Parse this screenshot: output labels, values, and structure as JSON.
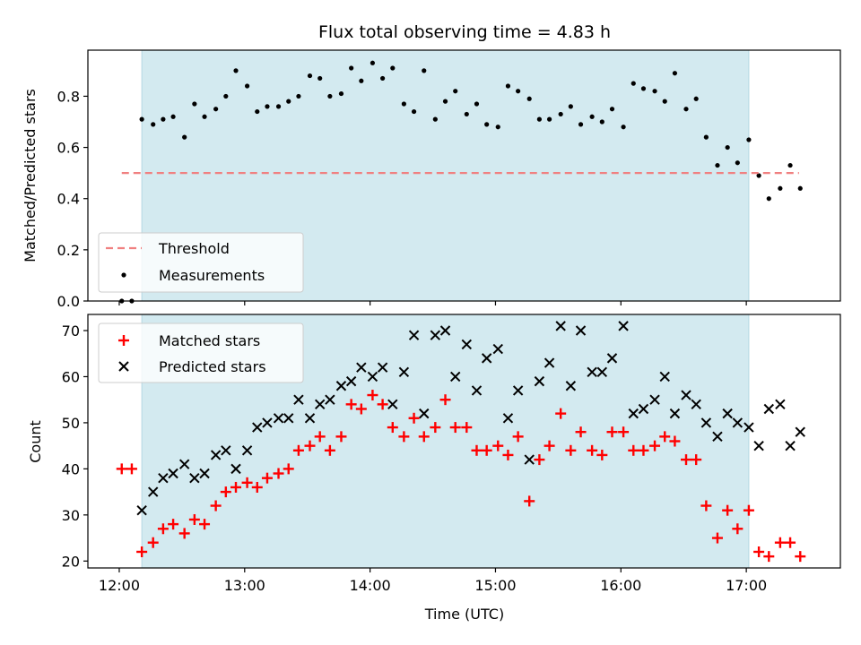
{
  "figure": {
    "title": "Flux total observing time = 4.83 h"
  },
  "chart_data": [
    {
      "type": "scatter",
      "panel": "top",
      "ylabel": "Matched/Predicted stars",
      "xlabel": "",
      "xlim": [
        -0.25,
        5.75
      ],
      "ylim": [
        0,
        0.98
      ],
      "yticks": [
        0.0,
        0.2,
        0.4,
        0.6,
        0.8
      ],
      "ytick_labels": [
        "0.0",
        "0.2",
        "0.4",
        "0.6",
        "0.8"
      ],
      "shaded_span_hours": [
        0.18,
        5.02
      ],
      "shade_color": "#d3eaf0",
      "threshold": {
        "name": "Threshold",
        "value": 0.5,
        "x_range_hours": [
          0.02,
          5.42
        ],
        "color": "#f08080"
      },
      "legend": {
        "position": "lower-left",
        "entries": [
          "Threshold",
          "Measurements"
        ]
      },
      "series": [
        {
          "name": "Measurements",
          "marker": "dot",
          "color": "#000000",
          "x_hours": [
            0.02,
            0.1,
            0.18,
            0.27,
            0.35,
            0.43,
            0.52,
            0.6,
            0.68,
            0.77,
            0.85,
            0.93,
            1.02,
            1.1,
            1.18,
            1.27,
            1.35,
            1.43,
            1.52,
            1.6,
            1.68,
            1.77,
            1.85,
            1.93,
            2.02,
            2.1,
            2.18,
            2.27,
            2.35,
            2.43,
            2.52,
            2.6,
            2.68,
            2.77,
            2.85,
            2.93,
            3.02,
            3.1,
            3.18,
            3.27,
            3.35,
            3.43,
            3.52,
            3.6,
            3.68,
            3.77,
            3.85,
            3.93,
            4.02,
            4.1,
            4.18,
            4.27,
            4.35,
            4.43,
            4.52,
            4.6,
            4.68,
            4.77,
            4.85,
            4.93,
            5.02,
            5.1,
            5.18,
            5.27,
            5.35,
            5.43
          ],
          "values": [
            0.0,
            0.0,
            0.71,
            0.69,
            0.71,
            0.72,
            0.64,
            0.77,
            0.72,
            0.75,
            0.8,
            0.9,
            0.84,
            0.74,
            0.76,
            0.76,
            0.78,
            0.8,
            0.88,
            0.87,
            0.8,
            0.81,
            0.91,
            0.86,
            0.93,
            0.87,
            0.91,
            0.77,
            0.74,
            0.9,
            0.71,
            0.78,
            0.82,
            0.73,
            0.77,
            0.69,
            0.68,
            0.84,
            0.82,
            0.79,
            0.71,
            0.71,
            0.73,
            0.76,
            0.69,
            0.72,
            0.7,
            0.75,
            0.68,
            0.85,
            0.83,
            0.82,
            0.78,
            0.89,
            0.75,
            0.79,
            0.64,
            0.53,
            0.6,
            0.54,
            0.63,
            0.49,
            0.4,
            0.44,
            0.53,
            0.44
          ]
        }
      ]
    },
    {
      "type": "scatter",
      "panel": "bottom",
      "ylabel": "Count",
      "xlabel": "Time (UTC)",
      "xlim": [
        -0.25,
        5.75
      ],
      "ylim": [
        18.5,
        73.5
      ],
      "xticks_hours": [
        0,
        1,
        2,
        3,
        4,
        5
      ],
      "xtick_labels": [
        "12:00",
        "13:00",
        "14:00",
        "15:00",
        "16:00",
        "17:00"
      ],
      "yticks": [
        20,
        30,
        40,
        50,
        60,
        70
      ],
      "ytick_labels": [
        "20",
        "30",
        "40",
        "50",
        "60",
        "70"
      ],
      "shaded_span_hours": [
        0.18,
        5.02
      ],
      "shade_color": "#d3eaf0",
      "legend": {
        "position": "upper-left",
        "entries": [
          "Matched stars",
          "Predicted stars"
        ]
      },
      "series": [
        {
          "name": "Matched stars",
          "marker": "plus",
          "color": "#ff0000",
          "x_hours": [
            0.02,
            0.1,
            0.18,
            0.27,
            0.35,
            0.43,
            0.52,
            0.6,
            0.68,
            0.77,
            0.85,
            0.93,
            1.02,
            1.1,
            1.18,
            1.27,
            1.35,
            1.43,
            1.52,
            1.6,
            1.68,
            1.77,
            1.85,
            1.93,
            2.02,
            2.1,
            2.18,
            2.27,
            2.35,
            2.43,
            2.52,
            2.6,
            2.68,
            2.77,
            2.85,
            2.93,
            3.02,
            3.1,
            3.18,
            3.27,
            3.35,
            3.43,
            3.52,
            3.6,
            3.68,
            3.77,
            3.85,
            3.93,
            4.02,
            4.1,
            4.18,
            4.27,
            4.35,
            4.43,
            4.52,
            4.6,
            4.68,
            4.77,
            4.85,
            4.93,
            5.02,
            5.1,
            5.18,
            5.27,
            5.35,
            5.43
          ],
          "values": [
            40,
            40,
            22,
            24,
            27,
            28,
            26,
            29,
            28,
            32,
            35,
            36,
            37,
            36,
            38,
            39,
            40,
            44,
            45,
            47,
            44,
            47,
            54,
            53,
            56,
            54,
            49,
            47,
            51,
            47,
            49,
            55,
            49,
            49,
            44,
            44,
            45,
            43,
            47,
            33,
            42,
            45,
            52,
            44,
            48,
            44,
            43,
            48,
            48,
            44,
            44,
            45,
            47,
            46,
            42,
            42,
            32,
            25,
            31,
            27,
            31,
            22,
            21,
            24,
            24,
            21
          ]
        },
        {
          "name": "Predicted stars",
          "marker": "x",
          "color": "#000000",
          "x_hours": [
            0.18,
            0.27,
            0.35,
            0.43,
            0.52,
            0.6,
            0.68,
            0.77,
            0.85,
            0.93,
            1.02,
            1.1,
            1.18,
            1.27,
            1.35,
            1.43,
            1.52,
            1.6,
            1.68,
            1.77,
            1.85,
            1.93,
            2.02,
            2.1,
            2.18,
            2.27,
            2.35,
            2.43,
            2.52,
            2.6,
            2.68,
            2.77,
            2.85,
            2.93,
            3.02,
            3.1,
            3.18,
            3.27,
            3.35,
            3.43,
            3.52,
            3.6,
            3.68,
            3.77,
            3.85,
            3.93,
            4.02,
            4.1,
            4.18,
            4.27,
            4.35,
            4.43,
            4.52,
            4.6,
            4.68,
            4.77,
            4.85,
            4.93,
            5.02,
            5.1,
            5.18,
            5.27,
            5.35,
            5.43
          ],
          "values": [
            31,
            35,
            38,
            39,
            41,
            38,
            39,
            43,
            44,
            40,
            44,
            49,
            50,
            51,
            51,
            55,
            51,
            54,
            55,
            58,
            59,
            62,
            60,
            62,
            54,
            61,
            69,
            52,
            69,
            70,
            60,
            67,
            57,
            64,
            66,
            51,
            57,
            42,
            59,
            63,
            71,
            58,
            70,
            61,
            61,
            64,
            71,
            52,
            53,
            55,
            60,
            52,
            56,
            54,
            50,
            47,
            52,
            50,
            49,
            45,
            53,
            54,
            45,
            48
          ]
        }
      ]
    }
  ]
}
